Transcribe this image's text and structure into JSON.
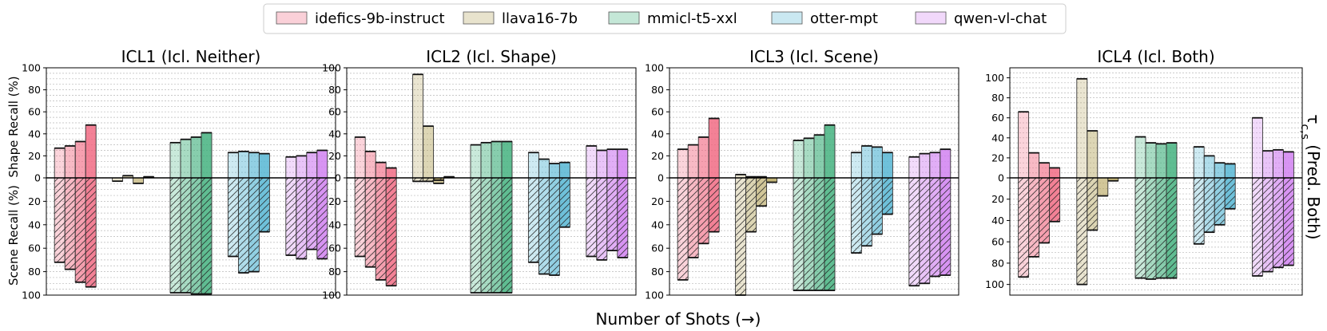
{
  "legend": {
    "placement": "top-center",
    "items": [
      {
        "name": "idefics-9b-instruct",
        "color": "#f0657f"
      },
      {
        "name": "llava16-7b",
        "color": "#b4a35a"
      },
      {
        "name": "mmicl-t5-xxl",
        "color": "#3daf7a"
      },
      {
        "name": "otter-mpt",
        "color": "#4fb3d2"
      },
      {
        "name": "qwen-vl-chat",
        "color": "#cf7df0"
      }
    ]
  },
  "xlabel": "Number of Shots (→)",
  "right_label": "τ_{c,s} (Pred. Both)",
  "upper_ylabel": "Shape Recall (%)",
  "lower_ylabel": "Scene Recall (%)",
  "chart_data": [
    {
      "type": "bar",
      "title": "ICL1 (Icl. Neither)",
      "ylim_top": 100,
      "ylim_bottom": 100,
      "upper_ticks": [
        "100",
        "80",
        "60",
        "40",
        "20",
        "0"
      ],
      "lower_ticks": [
        "20",
        "40",
        "60",
        "80",
        "100"
      ],
      "grid": true,
      "series": [
        {
          "name": "idefics-9b-instruct",
          "shape": [
            27,
            29,
            33,
            48
          ],
          "scene": [
            72,
            78,
            89,
            93
          ]
        },
        {
          "name": "llava16-7b",
          "shape": [
            -3,
            2,
            -5,
            1
          ],
          "scene": [
            0,
            0,
            0,
            0
          ]
        },
        {
          "name": "mmicl-t5-xxl",
          "shape": [
            32,
            35,
            37,
            41
          ],
          "scene": [
            98,
            98,
            99,
            99
          ]
        },
        {
          "name": "otter-mpt",
          "shape": [
            23,
            24,
            23,
            22
          ],
          "scene": [
            67,
            81,
            80,
            46
          ]
        },
        {
          "name": "qwen-vl-chat",
          "shape": [
            19,
            20,
            23,
            25
          ],
          "scene": [
            66,
            69,
            61,
            69
          ]
        }
      ]
    },
    {
      "type": "bar",
      "title": "ICL2 (Icl. Shape)",
      "ylim_top": 100,
      "ylim_bottom": 100,
      "upper_ticks": [
        "100",
        "80",
        "60",
        "40",
        "20",
        "0"
      ],
      "lower_ticks": [
        "20",
        "40",
        "60",
        "80",
        "100"
      ],
      "grid": true,
      "series": [
        {
          "name": "idefics-9b-instruct",
          "shape": [
            37,
            24,
            14,
            9
          ],
          "scene": [
            67,
            76,
            87,
            92
          ]
        },
        {
          "name": "llava16-7b",
          "shape": [
            94,
            47,
            -5,
            1
          ],
          "scene": [
            3,
            3,
            2,
            0
          ]
        },
        {
          "name": "mmicl-t5-xxl",
          "shape": [
            30,
            32,
            33,
            33
          ],
          "scene": [
            98,
            98,
            98,
            98
          ]
        },
        {
          "name": "otter-mpt",
          "shape": [
            23,
            17,
            13,
            14
          ],
          "scene": [
            72,
            82,
            83,
            42
          ]
        },
        {
          "name": "qwen-vl-chat",
          "shape": [
            29,
            25,
            26,
            26
          ],
          "scene": [
            67,
            70,
            62,
            68
          ]
        }
      ]
    },
    {
      "type": "bar",
      "title": "ICL3 (Icl. Scene)",
      "ylim_top": 100,
      "ylim_bottom": 100,
      "upper_ticks": [
        "100",
        "80",
        "60",
        "40",
        "20",
        "0"
      ],
      "lower_ticks": [
        "20",
        "40",
        "60",
        "80",
        "100"
      ],
      "grid": true,
      "series": [
        {
          "name": "idefics-9b-instruct",
          "shape": [
            26,
            30,
            37,
            54
          ],
          "scene": [
            87,
            68,
            56,
            46
          ]
        },
        {
          "name": "llava16-7b",
          "shape": [
            3,
            1,
            1,
            -4
          ],
          "scene": [
            100,
            46,
            24,
            0
          ]
        },
        {
          "name": "mmicl-t5-xxl",
          "shape": [
            34,
            36,
            39,
            48
          ],
          "scene": [
            96,
            96,
            96,
            96
          ]
        },
        {
          "name": "otter-mpt",
          "shape": [
            23,
            29,
            28,
            23
          ],
          "scene": [
            64,
            58,
            48,
            31
          ]
        },
        {
          "name": "qwen-vl-chat",
          "shape": [
            19,
            22,
            23,
            26
          ],
          "scene": [
            92,
            90,
            84,
            83
          ]
        }
      ]
    },
    {
      "type": "bar",
      "title": "ICL4 (Icl. Both)",
      "ylim_top": 110,
      "ylim_bottom": 110,
      "upper_ticks": [
        "100",
        "80",
        "60",
        "40",
        "20",
        "0"
      ],
      "lower_ticks": [
        "20",
        "40",
        "60",
        "80",
        "100"
      ],
      "grid": true,
      "series": [
        {
          "name": "idefics-9b-instruct",
          "shape": [
            66,
            25,
            15,
            10
          ],
          "scene": [
            93,
            74,
            61,
            41
          ]
        },
        {
          "name": "llava16-7b",
          "shape": [
            99,
            47,
            -18,
            -3
          ],
          "scene": [
            100,
            49,
            0,
            0
          ]
        },
        {
          "name": "mmicl-t5-xxl",
          "shape": [
            41,
            35,
            34,
            35
          ],
          "scene": [
            94,
            95,
            94,
            94
          ]
        },
        {
          "name": "otter-mpt",
          "shape": [
            31,
            22,
            15,
            14
          ],
          "scene": [
            62,
            51,
            44,
            29
          ]
        },
        {
          "name": "qwen-vl-chat",
          "shape": [
            60,
            27,
            28,
            26
          ],
          "scene": [
            92,
            88,
            84,
            82
          ]
        }
      ]
    }
  ]
}
